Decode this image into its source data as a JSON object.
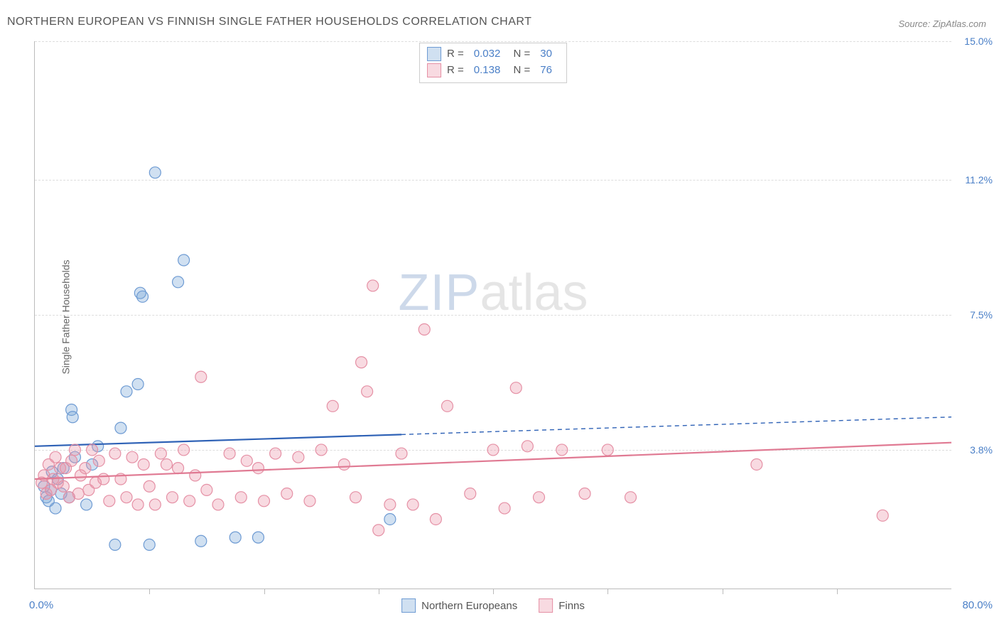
{
  "title": "NORTHERN EUROPEAN VS FINNISH SINGLE FATHER HOUSEHOLDS CORRELATION CHART",
  "source_prefix": "Source: ",
  "source": "ZipAtlas.com",
  "ylabel": "Single Father Households",
  "watermark_a": "ZIP",
  "watermark_b": "atlas",
  "chart": {
    "type": "scatter",
    "xlim": [
      0,
      80
    ],
    "ylim": [
      0,
      15
    ],
    "x_unit": "%",
    "y_unit": "%",
    "xticks_pct": [
      10,
      20,
      30,
      40,
      50,
      60,
      70
    ],
    "yticks": [
      {
        "v": 3.8,
        "label": "3.8%"
      },
      {
        "v": 7.5,
        "label": "7.5%"
      },
      {
        "v": 11.2,
        "label": "11.2%"
      },
      {
        "v": 15.0,
        "label": "15.0%"
      }
    ],
    "xmin_label": "0.0%",
    "xmax_label": "80.0%",
    "grid_color": "#dddddd",
    "axis_color": "#bbbbbb",
    "background_color": "#ffffff",
    "tick_label_color": "#4a7fc7",
    "marker_radius": 8,
    "series": [
      {
        "key": "northern",
        "label": "Northern Europeans",
        "fill": "rgba(120,165,216,0.35)",
        "stroke": "#6e9bd3",
        "line_color": "#2f62b6",
        "line_width": 2.2,
        "R": "0.032",
        "N": "30",
        "trend": {
          "y_at_x0": 3.9,
          "y_at_x80": 4.7,
          "solid_until_x": 32
        },
        "points": [
          [
            0.8,
            2.8
          ],
          [
            1.0,
            2.5
          ],
          [
            1.2,
            2.4
          ],
          [
            1.4,
            2.7
          ],
          [
            1.5,
            3.2
          ],
          [
            1.8,
            2.2
          ],
          [
            2.0,
            3.0
          ],
          [
            2.3,
            2.6
          ],
          [
            2.5,
            3.3
          ],
          [
            3.0,
            2.5
          ],
          [
            3.2,
            4.9
          ],
          [
            3.3,
            4.7
          ],
          [
            3.5,
            3.6
          ],
          [
            4.5,
            2.3
          ],
          [
            5.0,
            3.4
          ],
          [
            5.5,
            3.9
          ],
          [
            7.0,
            1.2
          ],
          [
            7.5,
            4.4
          ],
          [
            8.0,
            5.4
          ],
          [
            9.0,
            5.6
          ],
          [
            9.2,
            8.1
          ],
          [
            9.4,
            8.0
          ],
          [
            10.0,
            1.2
          ],
          [
            10.5,
            11.4
          ],
          [
            12.5,
            8.4
          ],
          [
            13.0,
            9.0
          ],
          [
            14.5,
            1.3
          ],
          [
            17.5,
            1.4
          ],
          [
            19.5,
            1.4
          ],
          [
            31.0,
            1.9
          ]
        ]
      },
      {
        "key": "finns",
        "label": "Finns",
        "fill": "rgba(235,150,170,0.35)",
        "stroke": "#e590a5",
        "line_color": "#e07a93",
        "line_width": 2.2,
        "R": "0.138",
        "N": "76",
        "trend": {
          "y_at_x0": 3.0,
          "y_at_x80": 4.0,
          "solid_until_x": 80
        },
        "points": [
          [
            0.6,
            2.9
          ],
          [
            0.8,
            3.1
          ],
          [
            1.0,
            2.6
          ],
          [
            1.2,
            3.4
          ],
          [
            1.4,
            2.7
          ],
          [
            1.6,
            3.0
          ],
          [
            1.8,
            3.6
          ],
          [
            2.0,
            2.9
          ],
          [
            2.2,
            3.3
          ],
          [
            2.5,
            2.8
          ],
          [
            2.7,
            3.3
          ],
          [
            3.0,
            2.5
          ],
          [
            3.2,
            3.5
          ],
          [
            3.5,
            3.8
          ],
          [
            3.8,
            2.6
          ],
          [
            4.0,
            3.1
          ],
          [
            4.4,
            3.3
          ],
          [
            4.7,
            2.7
          ],
          [
            5.0,
            3.8
          ],
          [
            5.3,
            2.9
          ],
          [
            5.6,
            3.5
          ],
          [
            6.0,
            3.0
          ],
          [
            6.5,
            2.4
          ],
          [
            7.0,
            3.7
          ],
          [
            7.5,
            3.0
          ],
          [
            8.0,
            2.5
          ],
          [
            8.5,
            3.6
          ],
          [
            9.0,
            2.3
          ],
          [
            9.5,
            3.4
          ],
          [
            10.0,
            2.8
          ],
          [
            10.5,
            2.3
          ],
          [
            11.0,
            3.7
          ],
          [
            11.5,
            3.4
          ],
          [
            12.0,
            2.5
          ],
          [
            12.5,
            3.3
          ],
          [
            13.0,
            3.8
          ],
          [
            13.5,
            2.4
          ],
          [
            14.0,
            3.1
          ],
          [
            14.5,
            5.8
          ],
          [
            15.0,
            2.7
          ],
          [
            16.0,
            2.3
          ],
          [
            17.0,
            3.7
          ],
          [
            18.0,
            2.5
          ],
          [
            18.5,
            3.5
          ],
          [
            19.5,
            3.3
          ],
          [
            20.0,
            2.4
          ],
          [
            21.0,
            3.7
          ],
          [
            22.0,
            2.6
          ],
          [
            23.0,
            3.6
          ],
          [
            24.0,
            2.4
          ],
          [
            25.0,
            3.8
          ],
          [
            26.0,
            5.0
          ],
          [
            27.0,
            3.4
          ],
          [
            28.0,
            2.5
          ],
          [
            28.5,
            6.2
          ],
          [
            29.0,
            5.4
          ],
          [
            29.5,
            8.3
          ],
          [
            30.0,
            1.6
          ],
          [
            31.0,
            2.3
          ],
          [
            32.0,
            3.7
          ],
          [
            33.0,
            2.3
          ],
          [
            34.0,
            7.1
          ],
          [
            35.0,
            1.9
          ],
          [
            36.0,
            5.0
          ],
          [
            38.0,
            2.6
          ],
          [
            40.0,
            3.8
          ],
          [
            41.0,
            2.2
          ],
          [
            42.0,
            5.5
          ],
          [
            43.0,
            3.9
          ],
          [
            44.0,
            2.5
          ],
          [
            46.0,
            3.8
          ],
          [
            48.0,
            2.6
          ],
          [
            50.0,
            3.8
          ],
          [
            52.0,
            2.5
          ],
          [
            63.0,
            3.4
          ],
          [
            74.0,
            2.0
          ]
        ]
      }
    ]
  },
  "stats_labels": {
    "R": "R =",
    "N": "N ="
  },
  "legend_series_order": [
    "northern",
    "finns"
  ]
}
